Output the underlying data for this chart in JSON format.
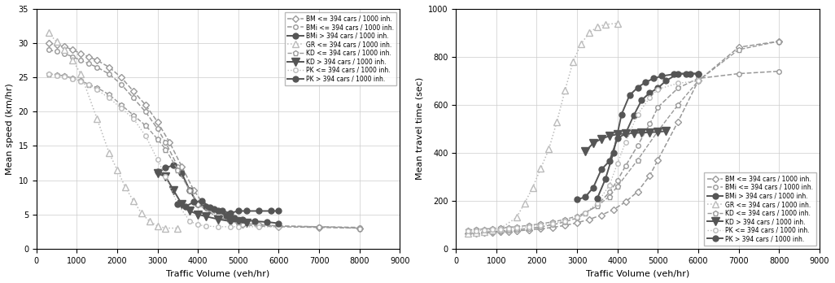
{
  "xlabel": "Traffic Volume (veh/hr)",
  "ylabel1": "Mean speed (km/hr)",
  "ylabel2": "Mean travel time (sec)",
  "xlim": [
    0,
    9000
  ],
  "ylim1": [
    0,
    35
  ],
  "ylim2": [
    0,
    1000
  ],
  "yticks1": [
    0,
    5,
    10,
    15,
    20,
    25,
    30,
    35
  ],
  "yticks2": [
    0,
    200,
    400,
    600,
    800,
    1000
  ],
  "xticks": [
    0,
    1000,
    2000,
    3000,
    4000,
    5000,
    6000,
    7000,
    8000,
    9000
  ],
  "series": [
    {
      "label": "BM <= 394 cars / 1000 inh.",
      "color": "#999999",
      "linestyle": "--",
      "marker": "D",
      "mfc": "white",
      "ms": 4,
      "lw": 1.1,
      "speed_x": [
        300,
        500,
        700,
        900,
        1100,
        1300,
        1500,
        1800,
        2100,
        2400,
        2700,
        3000,
        3300,
        3600,
        3900,
        4200,
        4500,
        4800,
        5100,
        5500,
        6000,
        7000,
        8000
      ],
      "speed_y": [
        30.0,
        29.8,
        29.5,
        29.0,
        28.5,
        28.0,
        27.5,
        26.5,
        25.0,
        23.0,
        21.0,
        18.5,
        15.5,
        12.0,
        8.5,
        6.0,
        4.8,
        4.0,
        3.5,
        3.3,
        3.2,
        3.1,
        3.0
      ],
      "time_x": [
        300,
        500,
        700,
        900,
        1100,
        1300,
        1500,
        1800,
        2100,
        2400,
        2700,
        3000,
        3300,
        3600,
        3900,
        4200,
        4500,
        4800,
        5000,
        5500,
        6000,
        7000,
        8000
      ],
      "time_y": [
        62,
        64,
        66,
        68,
        70,
        72,
        74,
        78,
        83,
        89,
        97,
        108,
        122,
        140,
        163,
        195,
        238,
        305,
        370,
        530,
        700,
        840,
        865
      ]
    },
    {
      "label": "BMi <= 394 cars / 1000 inh.",
      "color": "#999999",
      "linestyle": "--",
      "marker": "o",
      "mfc": "white",
      "ms": 4,
      "lw": 1.1,
      "speed_x": [
        300,
        500,
        700,
        900,
        1100,
        1300,
        1500,
        1800,
        2100,
        2400,
        2700,
        3000,
        3200,
        3500,
        3800,
        4000,
        4500,
        5000,
        6000,
        7000,
        8000
      ],
      "speed_y": [
        29.0,
        28.8,
        28.5,
        28.0,
        27.5,
        27.0,
        26.5,
        25.5,
        24.0,
        22.0,
        20.0,
        17.5,
        15.5,
        12.0,
        8.5,
        6.5,
        4.5,
        3.8,
        3.3,
        3.2,
        3.1
      ],
      "time_x": [
        300,
        500,
        700,
        900,
        1100,
        1300,
        1500,
        1800,
        2100,
        2400,
        2700,
        3000,
        3200,
        3500,
        3800,
        4000,
        4200,
        4500,
        4800,
        5000,
        5500,
        6000,
        7000,
        8000
      ],
      "time_y": [
        65,
        67,
        69,
        71,
        73,
        76,
        79,
        84,
        91,
        100,
        112,
        128,
        147,
        182,
        235,
        285,
        345,
        430,
        520,
        590,
        670,
        710,
        730,
        740
      ]
    },
    {
      "label": "BMi > 394 cars / 1000 inh.",
      "color": "#555555",
      "linestyle": "-",
      "marker": "o",
      "mfc": "#555555",
      "ms": 5,
      "lw": 1.4,
      "speed_x": [
        3000,
        3200,
        3400,
        3600,
        3800,
        4000,
        4200,
        4400,
        4600,
        4800,
        5000,
        5200,
        5500,
        5800,
        6000
      ],
      "speed_y": [
        11.2,
        11.8,
        12.2,
        11.0,
        8.5,
        6.5,
        6.2,
        5.8,
        5.5,
        5.2,
        5.5,
        5.5,
        5.5,
        5.5,
        5.5
      ],
      "time_x": [
        3000,
        3200,
        3400,
        3600,
        3800,
        4000,
        4200,
        4400,
        4600,
        4800,
        5000,
        5200,
        5500,
        5800,
        6000
      ],
      "time_y": [
        205,
        215,
        255,
        330,
        365,
        460,
        480,
        555,
        620,
        650,
        670,
        700,
        730,
        730,
        730
      ]
    },
    {
      "label": "GR <= 394 cars / 1000 inh.",
      "color": "#bbbbbb",
      "linestyle": ":",
      "marker": "^",
      "mfc": "white",
      "ms": 6,
      "lw": 1.1,
      "speed_x": [
        300,
        500,
        700,
        900,
        1100,
        1500,
        1800,
        2000,
        2200,
        2400,
        2600,
        2800,
        3000,
        3200,
        3500
      ],
      "speed_y": [
        31.5,
        30.2,
        29.0,
        27.5,
        25.5,
        19.0,
        14.0,
        11.5,
        9.0,
        7.0,
        5.2,
        4.0,
        3.3,
        3.0,
        3.0
      ],
      "time_x": [
        300,
        500,
        700,
        900,
        1100,
        1500,
        1700,
        1900,
        2100,
        2300,
        2500,
        2700,
        2900,
        3100,
        3300,
        3500,
        3700,
        4000
      ],
      "time_y": [
        63,
        66,
        70,
        76,
        84,
        130,
        190,
        255,
        335,
        415,
        530,
        660,
        780,
        855,
        900,
        925,
        935,
        940
      ]
    },
    {
      "label": "KD <= 394 cars / 1000 inh.",
      "color": "#999999",
      "linestyle": "--",
      "marker": "p",
      "mfc": "white",
      "ms": 5,
      "lw": 1.0,
      "speed_x": [
        300,
        500,
        700,
        900,
        1100,
        1300,
        1500,
        1800,
        2100,
        2400,
        2700,
        3000,
        3200,
        3500,
        3800,
        4000,
        4500,
        5000,
        5500,
        6000,
        7000,
        8000
      ],
      "speed_y": [
        25.5,
        25.4,
        25.2,
        24.9,
        24.5,
        24.0,
        23.5,
        22.5,
        21.0,
        19.5,
        18.0,
        16.0,
        14.5,
        11.5,
        8.5,
        6.5,
        4.5,
        3.8,
        3.5,
        3.3,
        3.2,
        3.0
      ],
      "time_x": [
        300,
        500,
        700,
        900,
        1100,
        1300,
        1500,
        1800,
        2100,
        2400,
        2700,
        3000,
        3200,
        3500,
        3800,
        4000,
        4500,
        5000,
        5500,
        6000,
        7000,
        8000
      ],
      "time_y": [
        78,
        80,
        82,
        84,
        86,
        89,
        92,
        97,
        104,
        112,
        122,
        136,
        150,
        178,
        218,
        260,
        370,
        490,
        600,
        700,
        830,
        865
      ]
    },
    {
      "label": "KD > 394 cars / 1000 inh.",
      "color": "#555555",
      "linestyle": "-",
      "marker": "v",
      "mfc": "#555555",
      "ms": 7,
      "lw": 1.4,
      "speed_x": [
        3000,
        3200,
        3400,
        3600,
        3800,
        4000,
        4200,
        4500,
        4800,
        5000,
        5200
      ],
      "speed_y": [
        11.0,
        10.5,
        8.5,
        6.5,
        5.5,
        5.0,
        4.7,
        4.3,
        4.0,
        4.0,
        3.8
      ],
      "time_x": [
        3200,
        3400,
        3600,
        3800,
        4000,
        4200,
        4400,
        4600,
        4800,
        5000,
        5200
      ],
      "time_y": [
        405,
        440,
        458,
        470,
        477,
        480,
        482,
        484,
        485,
        487,
        490
      ]
    },
    {
      "label": "PK <= 394 cars / 1000 inh.",
      "color": "#bbbbbb",
      "linestyle": ":",
      "marker": "o",
      "mfc": "white",
      "ms": 4,
      "lw": 1.0,
      "speed_x": [
        300,
        500,
        700,
        900,
        1100,
        1300,
        1500,
        1800,
        2100,
        2400,
        2700,
        3000,
        3200,
        3500,
        3800,
        4000,
        4200,
        4500,
        4800,
        5000,
        5500,
        6000
      ],
      "speed_y": [
        25.5,
        25.3,
        25.1,
        24.8,
        24.4,
        23.9,
        23.2,
        22.0,
        20.5,
        19.0,
        16.5,
        13.0,
        10.5,
        6.5,
        4.0,
        3.5,
        3.3,
        3.2,
        3.2,
        3.2,
        3.2,
        3.2
      ],
      "time_x": [
        300,
        500,
        700,
        900,
        1100,
        1300,
        1500,
        1800,
        2100,
        2400,
        2700,
        3000,
        3200,
        3500,
        3800,
        4000,
        4200,
        4500,
        4800,
        5000,
        5500,
        6000
      ],
      "time_y": [
        73,
        75,
        77,
        79,
        81,
        84,
        87,
        92,
        98,
        106,
        116,
        130,
        148,
        190,
        265,
        355,
        445,
        560,
        630,
        665,
        690,
        700
      ]
    },
    {
      "label": "PK > 394 cars / 1000 inh.",
      "color": "#555555",
      "linestyle": "-",
      "marker": "o",
      "mfc": "#555555",
      "ms": 5,
      "lw": 1.4,
      "speed_x": [
        3500,
        3700,
        3900,
        4100,
        4300,
        4500,
        4700,
        4900,
        5100,
        5400,
        5700,
        6000
      ],
      "speed_y": [
        6.5,
        6.2,
        6.8,
        7.0,
        6.0,
        5.5,
        4.8,
        4.5,
        4.3,
        4.0,
        3.9,
        3.7
      ],
      "time_x": [
        3500,
        3700,
        3900,
        4100,
        4300,
        4500,
        4700,
        4900,
        5100,
        5400,
        5700,
        6000
      ],
      "time_y": [
        210,
        290,
        400,
        560,
        640,
        672,
        695,
        710,
        720,
        728,
        730,
        730
      ]
    }
  ]
}
